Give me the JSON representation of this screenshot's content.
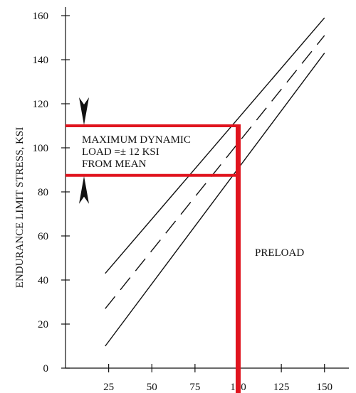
{
  "chart_data": {
    "type": "line",
    "title": "",
    "xlabel": "",
    "ylabel": "ENDURANCE LIMIT STRESS, KSI",
    "xlim": [
      0,
      160
    ],
    "ylim": [
      0,
      160
    ],
    "x_ticks": [
      25,
      50,
      75,
      100,
      125,
      150
    ],
    "y_ticks": [
      0,
      20,
      40,
      60,
      80,
      100,
      120,
      140,
      160
    ],
    "grid": false,
    "series": [
      {
        "style": "solid",
        "points": [
          [
            23,
            43
          ],
          [
            150,
            159
          ]
        ]
      },
      {
        "style": "dashed",
        "points": [
          [
            23,
            27
          ],
          [
            150,
            151
          ]
        ]
      },
      {
        "style": "solid",
        "points": [
          [
            23,
            10
          ],
          [
            150,
            143
          ]
        ]
      }
    ],
    "preload": {
      "x": 100,
      "label": "PRELOAD",
      "color": "#e0141e"
    },
    "dynamic_load_band": {
      "y_max": 110,
      "y_min": 87.5,
      "label_lines": [
        "MAXIMUM DYNAMIC",
        "LOAD =± 12 KSI",
        "FROM MEAN"
      ],
      "color": "#e0141e"
    }
  }
}
